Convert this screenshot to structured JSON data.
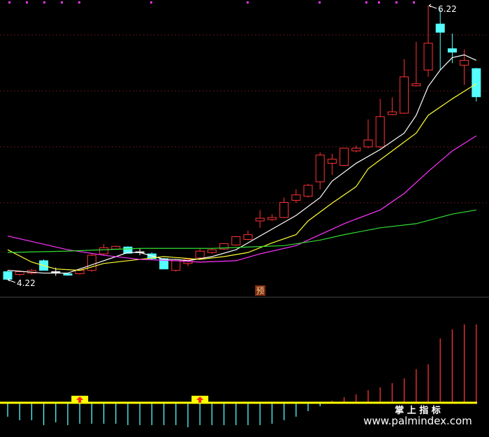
{
  "chart_data": {
    "type": "candlestick",
    "ylim": [
      4.12,
      6.26
    ],
    "up_color": "#ff3232",
    "down_color": "#54ffff",
    "flat_color": "#ffffff",
    "candles": [
      {
        "open": 4.28,
        "high": 4.29,
        "low": 4.22,
        "close": 4.225
      },
      {
        "open": 4.26,
        "high": 4.29,
        "low": 4.25,
        "close": 4.28
      },
      {
        "open": 4.27,
        "high": 4.3,
        "low": 4.26,
        "close": 4.29
      },
      {
        "open": 4.36,
        "high": 4.37,
        "low": 4.29,
        "close": 4.29
      },
      {
        "open": 4.28,
        "high": 4.31,
        "low": 4.25,
        "close": 4.28
      },
      {
        "open": 4.265,
        "high": 4.27,
        "low": 4.25,
        "close": 4.255
      },
      {
        "open": 4.265,
        "high": 4.3,
        "low": 4.26,
        "close": 4.29
      },
      {
        "open": 4.29,
        "high": 4.41,
        "low": 4.28,
        "close": 4.4
      },
      {
        "open": 4.41,
        "high": 4.48,
        "low": 4.4,
        "close": 4.455
      },
      {
        "open": 4.445,
        "high": 4.47,
        "low": 4.44,
        "close": 4.465
      },
      {
        "open": 4.46,
        "high": 4.465,
        "low": 4.41,
        "close": 4.415
      },
      {
        "open": 4.425,
        "high": 4.45,
        "low": 4.4,
        "close": 4.425
      },
      {
        "open": 4.41,
        "high": 4.42,
        "low": 4.37,
        "close": 4.375
      },
      {
        "open": 4.375,
        "high": 4.38,
        "low": 4.3,
        "close": 4.3
      },
      {
        "open": 4.29,
        "high": 4.37,
        "low": 4.28,
        "close": 4.36
      },
      {
        "open": 4.34,
        "high": 4.38,
        "low": 4.32,
        "close": 4.37
      },
      {
        "open": 4.38,
        "high": 4.45,
        "low": 4.37,
        "close": 4.43
      },
      {
        "open": 4.42,
        "high": 4.45,
        "low": 4.41,
        "close": 4.44
      },
      {
        "open": 4.445,
        "high": 4.49,
        "low": 4.44,
        "close": 4.485
      },
      {
        "open": 4.475,
        "high": 4.54,
        "low": 4.47,
        "close": 4.535
      },
      {
        "open": 4.515,
        "high": 4.58,
        "low": 4.51,
        "close": 4.55
      },
      {
        "open": 4.65,
        "high": 4.73,
        "low": 4.6,
        "close": 4.67
      },
      {
        "open": 4.66,
        "high": 4.7,
        "low": 4.65,
        "close": 4.675
      },
      {
        "open": 4.675,
        "high": 4.82,
        "low": 4.67,
        "close": 4.785
      },
      {
        "open": 4.8,
        "high": 4.88,
        "low": 4.78,
        "close": 4.84
      },
      {
        "open": 4.83,
        "high": 4.92,
        "low": 4.82,
        "close": 4.91
      },
      {
        "open": 4.935,
        "high": 5.15,
        "low": 4.88,
        "close": 5.13
      },
      {
        "open": 5.07,
        "high": 5.14,
        "low": 4.985,
        "close": 5.1
      },
      {
        "open": 5.055,
        "high": 5.18,
        "low": 5.05,
        "close": 5.18
      },
      {
        "open": 5.16,
        "high": 5.2,
        "low": 5.15,
        "close": 5.18
      },
      {
        "open": 5.19,
        "high": 5.39,
        "low": 5.18,
        "close": 5.24
      },
      {
        "open": 5.19,
        "high": 5.54,
        "low": 5.18,
        "close": 5.41
      },
      {
        "open": 5.425,
        "high": 5.55,
        "low": 5.42,
        "close": 5.445
      },
      {
        "open": 5.435,
        "high": 5.83,
        "low": 5.43,
        "close": 5.7
      },
      {
        "open": 5.635,
        "high": 5.955,
        "low": 5.63,
        "close": 5.65
      },
      {
        "open": 5.75,
        "high": 6.22,
        "low": 5.7,
        "close": 5.945
      },
      {
        "open": 6.085,
        "high": 6.19,
        "low": 5.75,
        "close": 6.025
      },
      {
        "open": 5.905,
        "high": 6.015,
        "low": 5.8,
        "close": 5.88
      },
      {
        "open": 5.785,
        "high": 5.9,
        "low": 5.64,
        "close": 5.82
      },
      {
        "open": 5.76,
        "high": 5.765,
        "low": 5.52,
        "close": 5.555
      }
    ],
    "series": [
      {
        "color": "#ffffff",
        "x": [
          0,
          3,
          5,
          10,
          11,
          13,
          14,
          15,
          17,
          19,
          20,
          22,
          24,
          26,
          27,
          29,
          31,
          33,
          34,
          35,
          36,
          37,
          38,
          39
        ],
        "values": [
          4.29,
          4.27,
          4.27,
          4.42,
          4.42,
          4.37,
          4.37,
          4.36,
          4.39,
          4.44,
          4.49,
          4.59,
          4.69,
          4.82,
          4.94,
          5.07,
          5.17,
          5.29,
          5.42,
          5.63,
          5.75,
          5.84,
          5.86,
          5.82
        ]
      },
      {
        "color": "#ffff33",
        "x": [
          0,
          2,
          4,
          6,
          8,
          11,
          13,
          16,
          18,
          20,
          22,
          24,
          25,
          27,
          29,
          30,
          32,
          34,
          35,
          37,
          39
        ],
        "values": [
          4.44,
          4.35,
          4.3,
          4.29,
          4.34,
          4.37,
          4.39,
          4.37,
          4.39,
          4.42,
          4.49,
          4.55,
          4.65,
          4.78,
          4.9,
          5.03,
          5.16,
          5.29,
          5.42,
          5.54,
          5.65
        ]
      },
      {
        "color": "#ff33ff",
        "x": [
          0,
          3,
          5,
          8,
          11,
          14,
          16,
          19,
          21,
          24,
          26,
          28,
          31,
          33,
          35,
          37,
          39
        ],
        "values": [
          4.54,
          4.48,
          4.44,
          4.4,
          4.37,
          4.36,
          4.35,
          4.36,
          4.41,
          4.47,
          4.55,
          4.63,
          4.73,
          4.85,
          5.01,
          5.16,
          5.27
        ]
      },
      {
        "color": "#33dd33",
        "x": [
          0,
          5,
          11,
          17,
          23,
          26,
          28,
          31,
          34,
          37,
          39
        ],
        "values": [
          4.42,
          4.43,
          4.45,
          4.45,
          4.47,
          4.51,
          4.55,
          4.6,
          4.63,
          4.7,
          4.73
        ]
      }
    ],
    "annotations": [
      "6.22",
      "4.22"
    ],
    "forecast_label": "预",
    "indicator": {
      "ylim": [
        -49,
        150
      ],
      "values": [
        -20,
        -25,
        -25,
        -32,
        -28,
        -32,
        -30,
        -30,
        -30,
        -30,
        -32,
        -32,
        -32,
        -32,
        -32,
        -35,
        -32,
        -32,
        -32,
        -32,
        -32,
        -32,
        -30,
        -25,
        -20,
        -12,
        -5,
        3,
        8,
        12,
        18,
        22,
        28,
        35,
        48,
        55,
        92,
        105,
        112,
        112
      ],
      "signals": [
        6,
        16
      ]
    },
    "watermark": {
      "title": "掌 上 指 标",
      "url": "www.palmindex.com"
    }
  }
}
